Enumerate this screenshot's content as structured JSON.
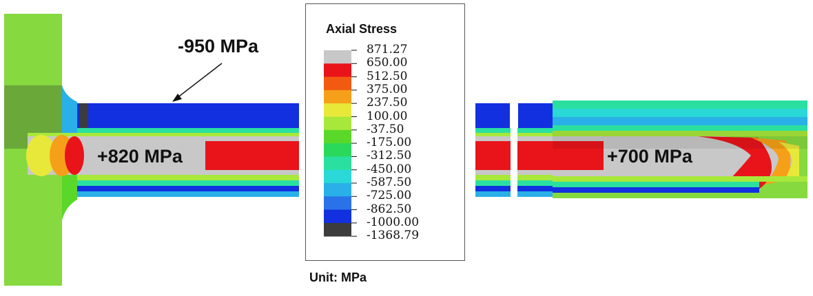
{
  "annotations": {
    "top_stress": "-950 MPa",
    "center_stress_left": "+820 MPa",
    "center_stress_right": "+700 MPa"
  },
  "legend": {
    "title": "Axial Stress",
    "unit": "Unit: MPa",
    "levels": [
      "871.27",
      "650.00",
      "512.50",
      "375.00",
      "237.50",
      "100.00",
      "-37.50",
      "-175.00",
      "-312.50",
      "-450.00",
      "-587.50",
      "-725.00",
      "-862.50",
      "-1000.00",
      "-1368.79"
    ],
    "colors": [
      "#c8c8c8",
      "#e8141a",
      "#f25a12",
      "#f5a018",
      "#e8e83a",
      "#a8e83a",
      "#5ad82a",
      "#2ad85a",
      "#2ae0a0",
      "#2ad8d8",
      "#2ab0e8",
      "#2a72e8",
      "#1230e0",
      "#3c3c3c"
    ]
  }
}
